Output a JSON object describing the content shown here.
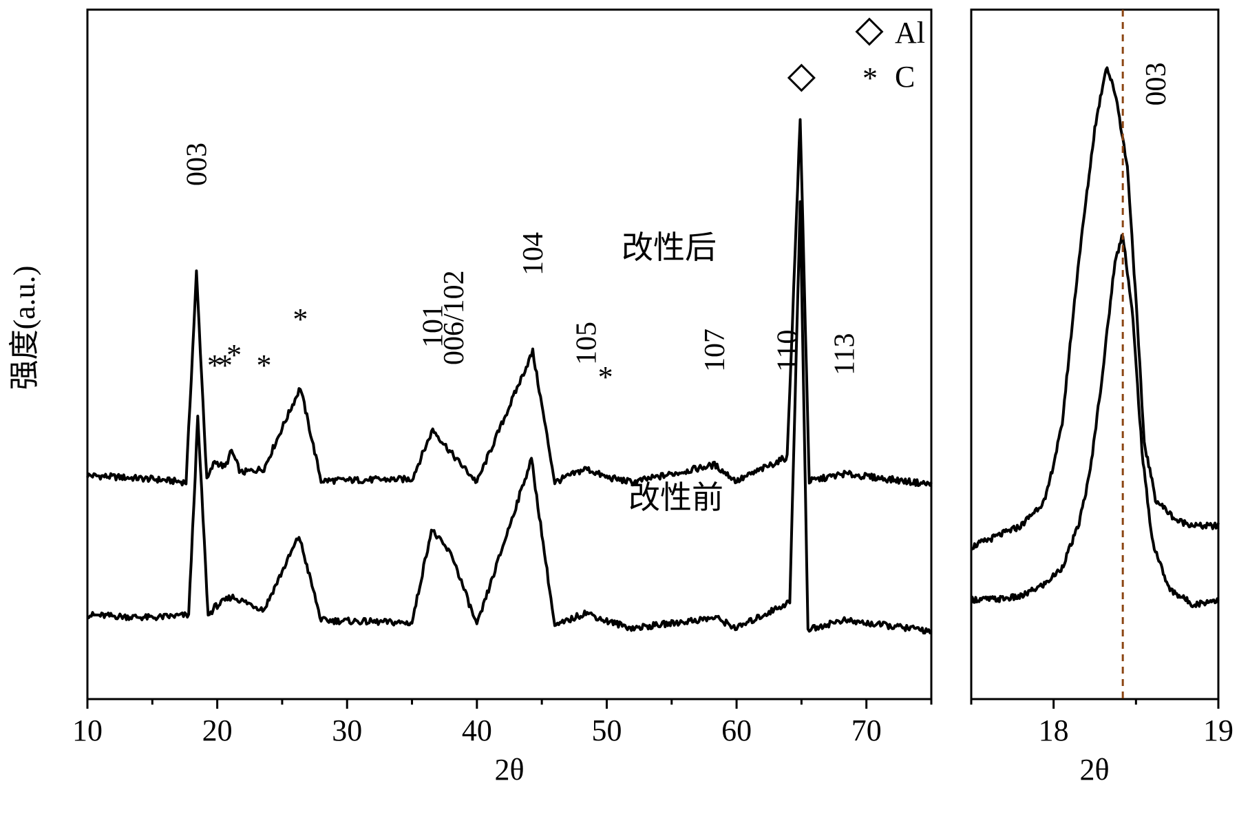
{
  "chart_data": [
    {
      "type": "line",
      "panel": "main",
      "xlabel": "2θ",
      "ylabel": "强度(a.u.)",
      "xlim": [
        10,
        75
      ],
      "x_ticks": [
        10,
        20,
        30,
        40,
        50,
        60,
        70
      ],
      "x_minor_ticks": [
        15,
        25,
        35,
        45,
        55,
        65,
        75
      ],
      "legend": {
        "placement": "top-right",
        "entries": [
          {
            "symbol": "diamond",
            "label": "Al"
          },
          {
            "symbol": "asterisk",
            "label": "C"
          }
        ]
      },
      "series": [
        {
          "name": "改性后",
          "baseline": 0.225,
          "points": [
            [
              10,
              0.235
            ],
            [
              15,
              0.228
            ],
            [
              17.6,
              0.222
            ],
            [
              18.4,
              0.62
            ],
            [
              19.2,
              0.225
            ],
            [
              19.8,
              0.262
            ],
            [
              20.6,
              0.25
            ],
            [
              21.1,
              0.282
            ],
            [
              21.8,
              0.24
            ],
            [
              23.6,
              0.248
            ],
            [
              26.4,
              0.402
            ],
            [
              28,
              0.225
            ],
            [
              35,
              0.228
            ],
            [
              36.6,
              0.322
            ],
            [
              38.2,
              0.272
            ],
            [
              40,
              0.222
            ],
            [
              44.3,
              0.47
            ],
            [
              46,
              0.222
            ],
            [
              48.4,
              0.248
            ],
            [
              49.9,
              0.232
            ],
            [
              52,
              0.222
            ],
            [
              58.3,
              0.255
            ],
            [
              60,
              0.224
            ],
            [
              63.9,
              0.27
            ],
            [
              64.9,
              0.91
            ],
            [
              65.6,
              0.224
            ],
            [
              68.3,
              0.238
            ],
            [
              75,
              0.218
            ]
          ]
        },
        {
          "name": "改性前",
          "baseline": -0.04,
          "points": [
            [
              10,
              -0.03
            ],
            [
              15,
              -0.035
            ],
            [
              17.8,
              -0.03
            ],
            [
              18.5,
              0.344
            ],
            [
              19.3,
              -0.032
            ],
            [
              19.8,
              -0.015
            ],
            [
              21.1,
              0.005
            ],
            [
              23.6,
              -0.02
            ],
            [
              26.3,
              0.12
            ],
            [
              28,
              -0.04
            ],
            [
              35,
              -0.045
            ],
            [
              36.5,
              0.132
            ],
            [
              38.1,
              0.082
            ],
            [
              40,
              -0.05
            ],
            [
              44.2,
              0.266
            ],
            [
              46,
              -0.052
            ],
            [
              48.4,
              -0.025
            ],
            [
              49.8,
              -0.04
            ],
            [
              52,
              -0.055
            ],
            [
              58.4,
              -0.035
            ],
            [
              60,
              -0.055
            ],
            [
              64.1,
              -0.005
            ],
            [
              64.9,
              0.75
            ],
            [
              65.5,
              -0.058
            ],
            [
              68.1,
              -0.04
            ],
            [
              75,
              -0.06
            ]
          ]
        }
      ],
      "peak_annotations": {
        "hkl": [
          {
            "label": "003",
            "x": 18.4
          },
          {
            "label": "101",
            "x": 36.6
          },
          {
            "label": "006/102",
            "x": 38.2
          },
          {
            "label": "104",
            "x": 44.3
          },
          {
            "label": "105",
            "x": 48.4
          },
          {
            "label": "107",
            "x": 58.3
          },
          {
            "label": "110",
            "x": 63.9
          },
          {
            "label": "113",
            "x": 68.3
          }
        ],
        "carbon_marks": [
          {
            "symbol": "*",
            "x": 19.8
          },
          {
            "symbol": "*",
            "x": 20.6
          },
          {
            "symbol": "*",
            "x": 21.3
          },
          {
            "symbol": "*",
            "x": 23.6
          },
          {
            "symbol": "*",
            "x": 26.4
          },
          {
            "symbol": "*",
            "x": 49.9
          }
        ],
        "aluminum_marks": [
          {
            "symbol": "◇",
            "x": 65.0
          }
        ]
      }
    },
    {
      "type": "line",
      "panel": "zoom",
      "xlabel": "2θ",
      "xlim": [
        17.5,
        19
      ],
      "x_ticks": [
        18,
        19
      ],
      "x_minor_ticks": [
        17.5,
        18.5
      ],
      "reference_line": {
        "x": 18.42,
        "style": "dashed",
        "color": "#8B4513"
      },
      "peak_label": "003",
      "series": [
        {
          "name": "改性后",
          "points": [
            [
              17.5,
              0.08
            ],
            [
              17.65,
              0.1
            ],
            [
              17.8,
              0.12
            ],
            [
              17.95,
              0.17
            ],
            [
              18.05,
              0.31
            ],
            [
              18.15,
              0.62
            ],
            [
              18.25,
              0.88
            ],
            [
              18.32,
              1.0
            ],
            [
              18.38,
              0.94
            ],
            [
              18.45,
              0.8
            ],
            [
              18.5,
              0.55
            ],
            [
              18.55,
              0.28
            ],
            [
              18.62,
              0.17
            ],
            [
              18.75,
              0.13
            ],
            [
              18.88,
              0.12
            ],
            [
              19,
              0.12
            ]
          ]
        },
        {
          "name": "改性前",
          "points": [
            [
              17.5,
              -0.02
            ],
            [
              17.65,
              -0.02
            ],
            [
              17.8,
              -0.015
            ],
            [
              17.95,
              0.01
            ],
            [
              18.05,
              0.04
            ],
            [
              18.15,
              0.12
            ],
            [
              18.22,
              0.22
            ],
            [
              18.3,
              0.42
            ],
            [
              18.37,
              0.62
            ],
            [
              18.42,
              0.68
            ],
            [
              18.48,
              0.52
            ],
            [
              18.54,
              0.25
            ],
            [
              18.6,
              0.09
            ],
            [
              18.7,
              0.0
            ],
            [
              18.85,
              -0.03
            ],
            [
              19,
              -0.02
            ]
          ]
        }
      ]
    }
  ]
}
